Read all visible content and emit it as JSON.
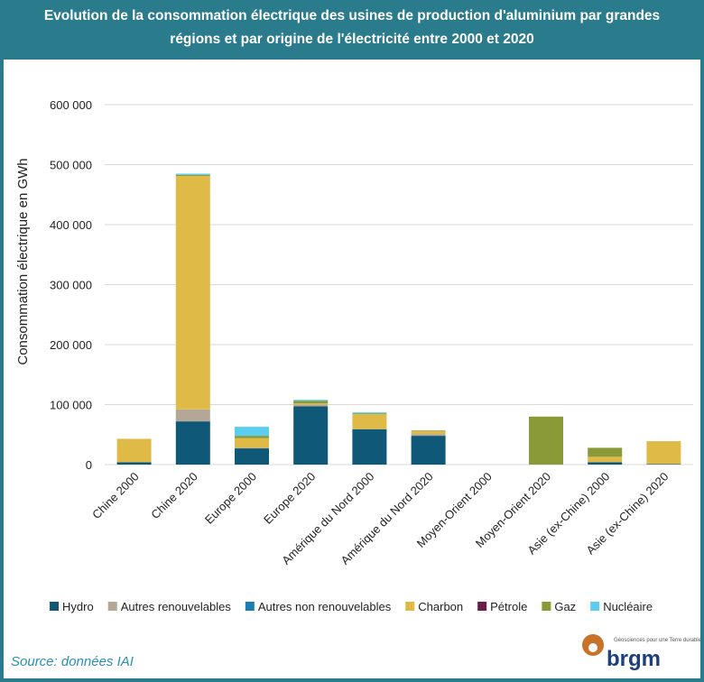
{
  "chart_data": {
    "type": "bar",
    "stacked": true,
    "title": "Evolution de la consommation électrique des usines de production d'aluminium par grandes",
    "subtitle": "régions et par origine de l'électricité entre 2000 et 2020",
    "ylabel": "Consommation électrique en GWh",
    "source": "Source: données IAI",
    "logo": {
      "name": "brgm",
      "tagline": "Géosciences pour une Terre durable"
    },
    "categories": [
      "Chine 2000",
      "Chine 2020",
      "Europe 2000",
      "Europe 2020",
      "Amérique du Nord 2000",
      "Amérique du Nord 2020",
      "Moyen-Orient 2000",
      "Moyen-Orient 2020",
      "Asie (ex-Chine) 2000",
      "Asie (ex-Chine) 2020"
    ],
    "series": [
      {
        "name": "Hydro",
        "color": "#0f5878",
        "values": [
          4000,
          72000,
          27000,
          97000,
          59000,
          48000,
          0,
          0,
          4000,
          1000
        ]
      },
      {
        "name": "Autres renouvelables",
        "color": "#b3a897",
        "values": [
          0,
          20000,
          1000,
          3000,
          0,
          3000,
          0,
          0,
          0,
          0
        ]
      },
      {
        "name": "Autres non renouvelables",
        "color": "#1a7db3",
        "values": [
          0,
          0,
          0,
          0,
          0,
          0,
          0,
          0,
          0,
          0
        ]
      },
      {
        "name": "Charbon",
        "color": "#dfba47",
        "values": [
          39000,
          389000,
          16000,
          2000,
          25000,
          5000,
          0,
          0,
          9000,
          38000
        ]
      },
      {
        "name": "Pétrole",
        "color": "#6b1f4a",
        "values": [
          0,
          0,
          0,
          0,
          0,
          0,
          0,
          0,
          0,
          0
        ]
      },
      {
        "name": "Gaz",
        "color": "#8b9a38",
        "values": [
          0,
          2000,
          4000,
          4000,
          1000,
          1000,
          0,
          80000,
          15000,
          0
        ]
      },
      {
        "name": "Nucléaire",
        "color": "#5bcdf0",
        "values": [
          0,
          2000,
          15000,
          2000,
          2000,
          0,
          0,
          0,
          0,
          0
        ]
      }
    ],
    "ylim": [
      0,
      600000
    ],
    "yticks": [
      0,
      {
        "value": 100000,
        "label": "100 000"
      },
      {
        "value": 200000,
        "label": "200 000"
      },
      {
        "value": 300000,
        "label": "300 000"
      },
      {
        "value": 400000,
        "label": "400 000"
      },
      {
        "value": 500000,
        "label": "500 000"
      },
      {
        "value": 600000,
        "label": "600 000"
      }
    ],
    "grid": true
  }
}
